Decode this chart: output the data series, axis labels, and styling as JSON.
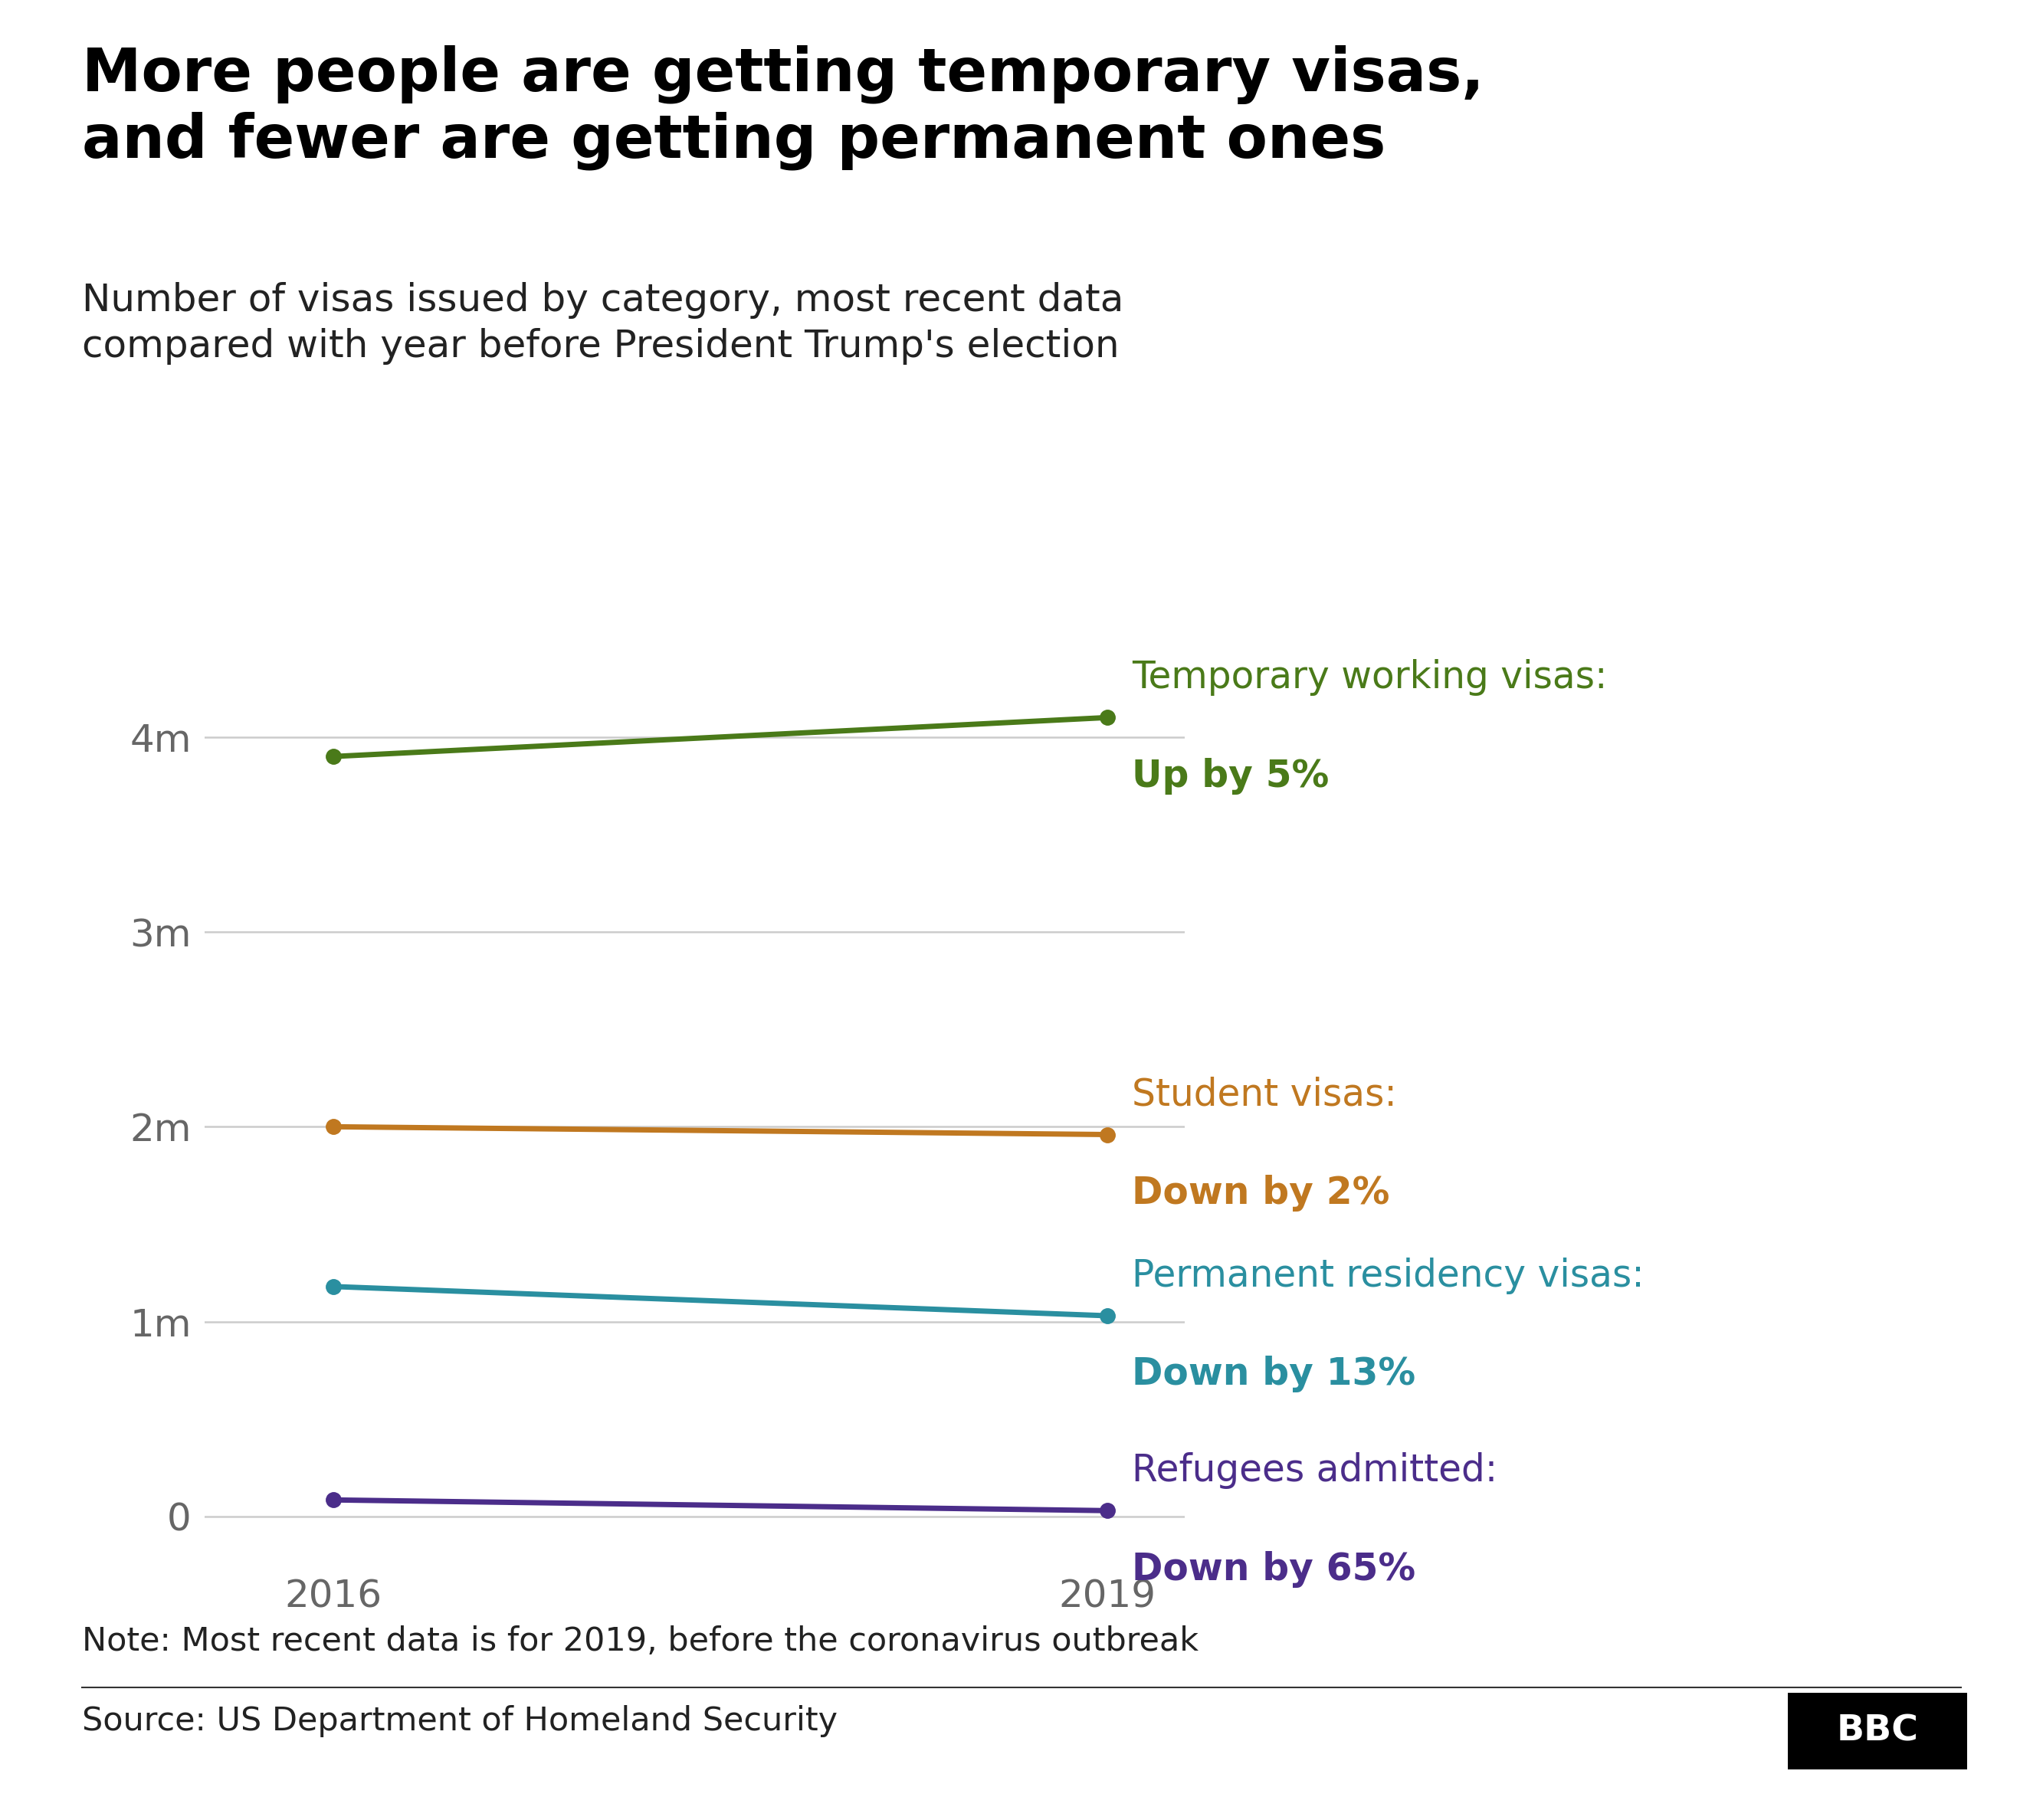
{
  "title": "More people are getting temporary visas,\nand fewer are getting permanent ones",
  "subtitle": "Number of visas issued by category, most recent data\ncompared with year before President Trump's election",
  "note": "Note: Most recent data is for 2019, before the coronavirus outbreak",
  "source": "Source: US Department of Homeland Security",
  "series": [
    {
      "label_line1": "Temporary working visas:",
      "label_line2": "Up by 5%",
      "x": [
        2016,
        2019
      ],
      "y": [
        3900000,
        4100000
      ],
      "color": "#4a7a19",
      "lw": 5.0
    },
    {
      "label_line1": "Student visas:",
      "label_line2": "Down by 2%",
      "x": [
        2016,
        2019
      ],
      "y": [
        2000000,
        1960000
      ],
      "color": "#c07820",
      "lw": 5.0
    },
    {
      "label_line1": "Permanent residency visas:",
      "label_line2": "Down by 13%",
      "x": [
        2016,
        2019
      ],
      "y": [
        1180000,
        1030000
      ],
      "color": "#2a8fa0",
      "lw": 5.0
    },
    {
      "label_line1": "Refugees admitted:",
      "label_line2": "Down by 65%",
      "x": [
        2016,
        2019
      ],
      "y": [
        85000,
        30000
      ],
      "color": "#4b2d8a",
      "lw": 5.0
    }
  ],
  "yticks": [
    0,
    1000000,
    2000000,
    3000000,
    4000000
  ],
  "ytick_labels": [
    "0",
    "1m",
    "2m",
    "3m",
    "4m"
  ],
  "xticks": [
    2016,
    2019
  ],
  "ylim": [
    -250000,
    4700000
  ],
  "xlim": [
    2015.5,
    2019.3
  ],
  "background_color": "#ffffff",
  "title_fontsize": 56,
  "subtitle_fontsize": 36,
  "tick_fontsize": 36,
  "label_fontsize": 35,
  "note_fontsize": 31,
  "source_fontsize": 31,
  "marker_size": 14,
  "grid_color": "#cccccc",
  "tick_color": "#666666",
  "title_color": "#000000",
  "subtitle_color": "#222222",
  "note_color": "#222222",
  "source_color": "#222222"
}
